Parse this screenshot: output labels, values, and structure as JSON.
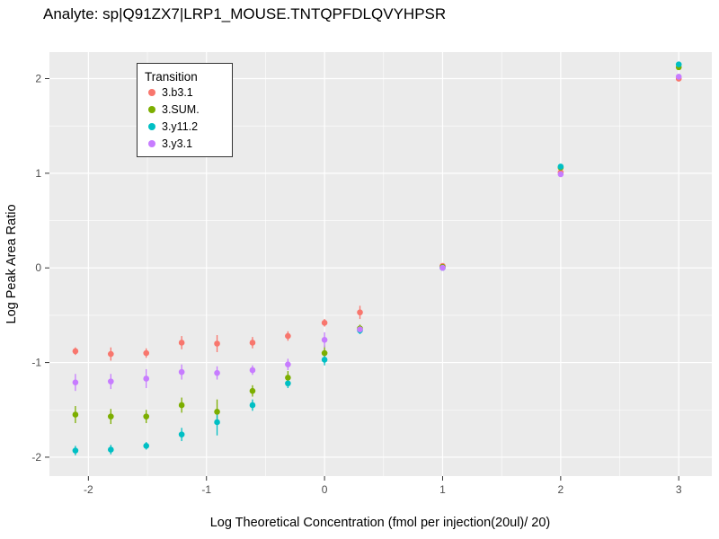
{
  "chart_data": {
    "type": "scatter",
    "title": "Analyte: sp|Q91ZX7|LRP1_MOUSE.TNTQPFDLQVYHPSR",
    "xlabel": "Log Theoretical Concentration (fmol per injection(20ul)/ 20)",
    "ylabel": "Log Peak Area Ratio",
    "legend_title": "Transition",
    "legend_position": "top-left-inside",
    "grid": true,
    "panel_bg": "#EBEBEB",
    "grid_color": "#FFFFFF",
    "tick_color": "#333333",
    "tick_label_color": "#4D4D4D",
    "xlim": [
      -2.33,
      3.28
    ],
    "ylim": [
      -2.2,
      2.28
    ],
    "xticks": [
      -2,
      -1,
      0,
      1,
      2,
      3
    ],
    "yticks": [
      -2,
      -1,
      0,
      1,
      2
    ],
    "xticks_minor": [
      -1.5,
      -0.5,
      0.5,
      1.5,
      2.5
    ],
    "yticks_minor": [
      -1.5,
      -0.5,
      0.5,
      1.5
    ],
    "x": [
      -2.11,
      -1.81,
      -1.51,
      -1.21,
      -0.91,
      -0.61,
      -0.31,
      0.0,
      0.3,
      1.0,
      2.0,
      3.0
    ],
    "series": [
      {
        "name": "3.b3.1",
        "color": "#F8766D",
        "y": [
          -0.88,
          -0.91,
          -0.9,
          -0.79,
          -0.8,
          -0.79,
          -0.72,
          -0.58,
          -0.47,
          0.02,
          1.01,
          2.0
        ],
        "err": [
          0.04,
          0.07,
          0.05,
          0.07,
          0.09,
          0.06,
          0.05,
          0.04,
          0.07,
          0.02,
          0.02,
          0.03
        ]
      },
      {
        "name": "3.SUM.",
        "color": "#7CAE00",
        "y": [
          -1.55,
          -1.57,
          -1.57,
          -1.45,
          -1.52,
          -1.3,
          -1.16,
          -0.9,
          -0.64,
          0.01,
          1.06,
          2.12
        ],
        "err": [
          0.09,
          0.08,
          0.07,
          0.08,
          0.13,
          0.06,
          0.07,
          0.08,
          0.04,
          0.02,
          0.02,
          0.03
        ]
      },
      {
        "name": "3.y11.2",
        "color": "#00BFC4",
        "y": [
          -1.93,
          -1.92,
          -1.88,
          -1.76,
          -1.63,
          -1.45,
          -1.22,
          -0.97,
          -0.66,
          0.0,
          1.07,
          2.15
        ],
        "err": [
          0.05,
          0.05,
          0.04,
          0.07,
          0.14,
          0.06,
          0.05,
          0.06,
          0.04,
          0.02,
          0.02,
          0.03
        ]
      },
      {
        "name": "3.y3.1",
        "color": "#C77CFF",
        "y": [
          -1.21,
          -1.2,
          -1.17,
          -1.1,
          -1.11,
          -1.08,
          -1.02,
          -0.76,
          -0.65,
          0.0,
          0.99,
          2.02
        ],
        "err": [
          0.09,
          0.08,
          0.1,
          0.08,
          0.07,
          0.05,
          0.06,
          0.08,
          0.04,
          0.02,
          0.02,
          0.03
        ]
      }
    ]
  }
}
